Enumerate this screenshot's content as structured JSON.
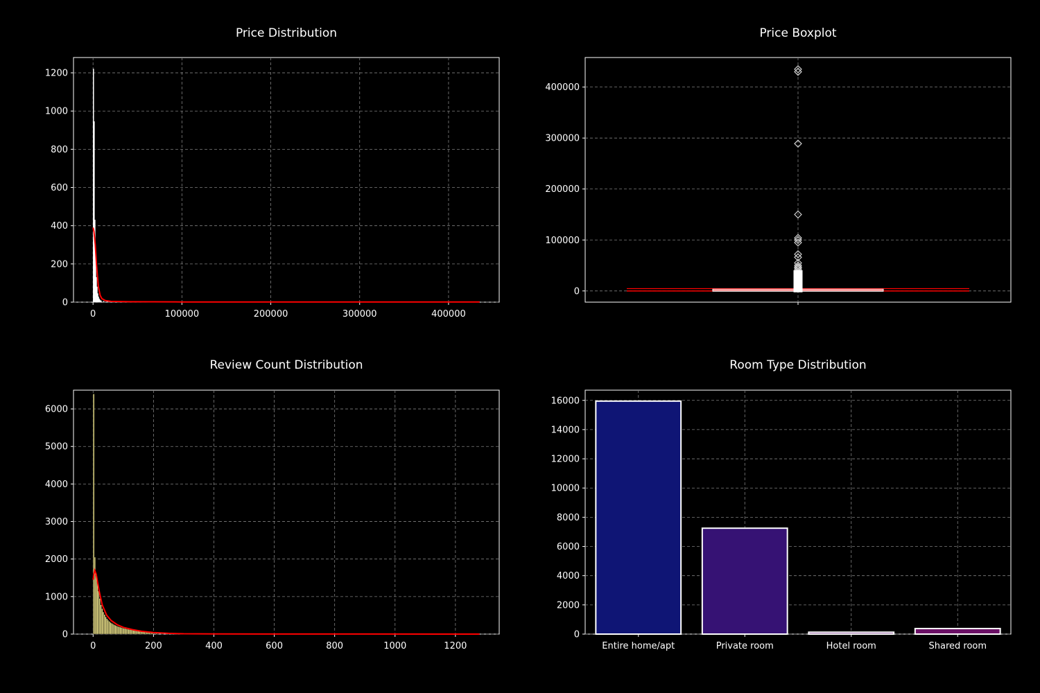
{
  "page": {
    "background": "#000000",
    "text_color": "#ffffff",
    "grid_color": "#808080",
    "accent": "#ff0000"
  },
  "chart_data": [
    {
      "id": "price-distribution",
      "type": "histogram",
      "title": "Price Distribution",
      "xlabel": "",
      "ylabel": "",
      "xlim": [
        -22000,
        457000
      ],
      "ylim": [
        0,
        1280
      ],
      "xticks": [
        0,
        100000,
        200000,
        300000,
        400000
      ],
      "yticks": [
        0,
        200,
        400,
        600,
        800,
        1000,
        1200
      ],
      "grid": true,
      "bar_color": "#ffffff",
      "kde_color": "#ff0000",
      "bins": [
        {
          "x": 500,
          "count": 1220
        },
        {
          "x": 1300,
          "count": 945
        },
        {
          "x": 2100,
          "count": 430
        },
        {
          "x": 2900,
          "count": 240
        },
        {
          "x": 3700,
          "count": 130
        },
        {
          "x": 4500,
          "count": 80
        },
        {
          "x": 5300,
          "count": 45
        },
        {
          "x": 6100,
          "count": 28
        },
        {
          "x": 6900,
          "count": 18
        },
        {
          "x": 7700,
          "count": 12
        },
        {
          "x": 9000,
          "count": 8
        },
        {
          "x": 12000,
          "count": 5
        },
        {
          "x": 16000,
          "count": 3
        }
      ],
      "bin_width": 800,
      "kde": [
        {
          "x": 0,
          "y": 390
        },
        {
          "x": 1000,
          "y": 370
        },
        {
          "x": 2500,
          "y": 300
        },
        {
          "x": 4000,
          "y": 190
        },
        {
          "x": 6000,
          "y": 80
        },
        {
          "x": 8000,
          "y": 35
        },
        {
          "x": 10000,
          "y": 18
        },
        {
          "x": 14000,
          "y": 8
        },
        {
          "x": 20000,
          "y": 4
        },
        {
          "x": 40000,
          "y": 2
        },
        {
          "x": 100000,
          "y": 1
        },
        {
          "x": 435000,
          "y": 1
        }
      ]
    },
    {
      "id": "price-boxplot",
      "type": "boxplot",
      "title": "Price Boxplot",
      "xlabel": "",
      "ylabel": "",
      "ylim": [
        -22000,
        458000
      ],
      "yticks": [
        0,
        100000,
        200000,
        300000,
        400000
      ],
      "grid": true,
      "box": {
        "q1": 700,
        "median": 1200,
        "q3": 2200,
        "whisker_low": 0,
        "whisker_high": 4500
      },
      "outliers": [
        435000,
        430000,
        289000,
        150000,
        104000,
        100000,
        95000,
        72000,
        66000,
        55000,
        50000,
        47000,
        45000,
        42000,
        38000,
        35000,
        32000,
        29000,
        26000,
        23000,
        20000,
        17000,
        14000,
        11000,
        8000,
        6000
      ]
    },
    {
      "id": "review-count-distribution",
      "type": "histogram",
      "title": "Review Count Distribution",
      "xlabel": "",
      "ylabel": "",
      "xlim": [
        -65,
        1345
      ],
      "ylim": [
        0,
        6500
      ],
      "xticks": [
        0,
        200,
        400,
        600,
        800,
        1000,
        1200
      ],
      "yticks": [
        0,
        1000,
        2000,
        3000,
        4000,
        5000,
        6000
      ],
      "grid": true,
      "bar_color": "#f0e68c",
      "kde_color": "#ff0000",
      "bins": [
        {
          "x": 2,
          "count": 6400
        },
        {
          "x": 6,
          "count": 2050
        },
        {
          "x": 10,
          "count": 1600
        },
        {
          "x": 14,
          "count": 1400
        },
        {
          "x": 18,
          "count": 1150
        },
        {
          "x": 22,
          "count": 950
        },
        {
          "x": 26,
          "count": 780
        },
        {
          "x": 30,
          "count": 680
        },
        {
          "x": 34,
          "count": 590
        },
        {
          "x": 38,
          "count": 520
        },
        {
          "x": 42,
          "count": 460
        },
        {
          "x": 46,
          "count": 410
        },
        {
          "x": 50,
          "count": 370
        },
        {
          "x": 54,
          "count": 340
        },
        {
          "x": 58,
          "count": 310
        },
        {
          "x": 62,
          "count": 290
        },
        {
          "x": 66,
          "count": 270
        },
        {
          "x": 70,
          "count": 250
        },
        {
          "x": 74,
          "count": 235
        },
        {
          "x": 78,
          "count": 220
        },
        {
          "x": 82,
          "count": 205
        },
        {
          "x": 86,
          "count": 195
        },
        {
          "x": 90,
          "count": 185
        },
        {
          "x": 94,
          "count": 175
        },
        {
          "x": 98,
          "count": 165
        },
        {
          "x": 102,
          "count": 155
        },
        {
          "x": 106,
          "count": 150
        },
        {
          "x": 110,
          "count": 140
        },
        {
          "x": 114,
          "count": 135
        },
        {
          "x": 118,
          "count": 128
        },
        {
          "x": 122,
          "count": 120
        },
        {
          "x": 126,
          "count": 115
        },
        {
          "x": 130,
          "count": 108
        },
        {
          "x": 134,
          "count": 100
        },
        {
          "x": 138,
          "count": 95
        },
        {
          "x": 142,
          "count": 90
        },
        {
          "x": 146,
          "count": 85
        },
        {
          "x": 150,
          "count": 80
        },
        {
          "x": 154,
          "count": 75
        },
        {
          "x": 158,
          "count": 70
        },
        {
          "x": 162,
          "count": 65
        },
        {
          "x": 166,
          "count": 60
        },
        {
          "x": 170,
          "count": 56
        },
        {
          "x": 174,
          "count": 52
        },
        {
          "x": 178,
          "count": 48
        },
        {
          "x": 182,
          "count": 44
        },
        {
          "x": 186,
          "count": 40
        },
        {
          "x": 190,
          "count": 37
        },
        {
          "x": 194,
          "count": 34
        },
        {
          "x": 198,
          "count": 31
        },
        {
          "x": 210,
          "count": 26
        },
        {
          "x": 230,
          "count": 20
        },
        {
          "x": 250,
          "count": 15
        },
        {
          "x": 270,
          "count": 11
        },
        {
          "x": 290,
          "count": 8
        },
        {
          "x": 310,
          "count": 6
        },
        {
          "x": 340,
          "count": 4
        }
      ],
      "bin_width": 4,
      "kde": [
        {
          "x": 0,
          "y": 1450
        },
        {
          "x": 5,
          "y": 1700
        },
        {
          "x": 10,
          "y": 1600
        },
        {
          "x": 20,
          "y": 1150
        },
        {
          "x": 30,
          "y": 780
        },
        {
          "x": 45,
          "y": 500
        },
        {
          "x": 60,
          "y": 360
        },
        {
          "x": 80,
          "y": 250
        },
        {
          "x": 100,
          "y": 180
        },
        {
          "x": 130,
          "y": 120
        },
        {
          "x": 160,
          "y": 75
        },
        {
          "x": 200,
          "y": 40
        },
        {
          "x": 250,
          "y": 20
        },
        {
          "x": 300,
          "y": 10
        },
        {
          "x": 400,
          "y": 5
        },
        {
          "x": 600,
          "y": 2
        },
        {
          "x": 900,
          "y": 1
        },
        {
          "x": 1280,
          "y": 0
        }
      ]
    },
    {
      "id": "room-type-distribution",
      "type": "bar",
      "title": "Room Type Distribution",
      "xlabel": "",
      "ylabel": "",
      "categories": [
        "Entire home/apt",
        "Private room",
        "Hotel room",
        "Shared room"
      ],
      "values": [
        15950,
        7250,
        130,
        380
      ],
      "colors": [
        "#0f1575",
        "#361274",
        "#5a1270",
        "#6b1166"
      ],
      "ylim": [
        0,
        16700
      ],
      "yticks": [
        0,
        2000,
        4000,
        6000,
        8000,
        10000,
        12000,
        14000,
        16000
      ],
      "grid": true
    }
  ]
}
